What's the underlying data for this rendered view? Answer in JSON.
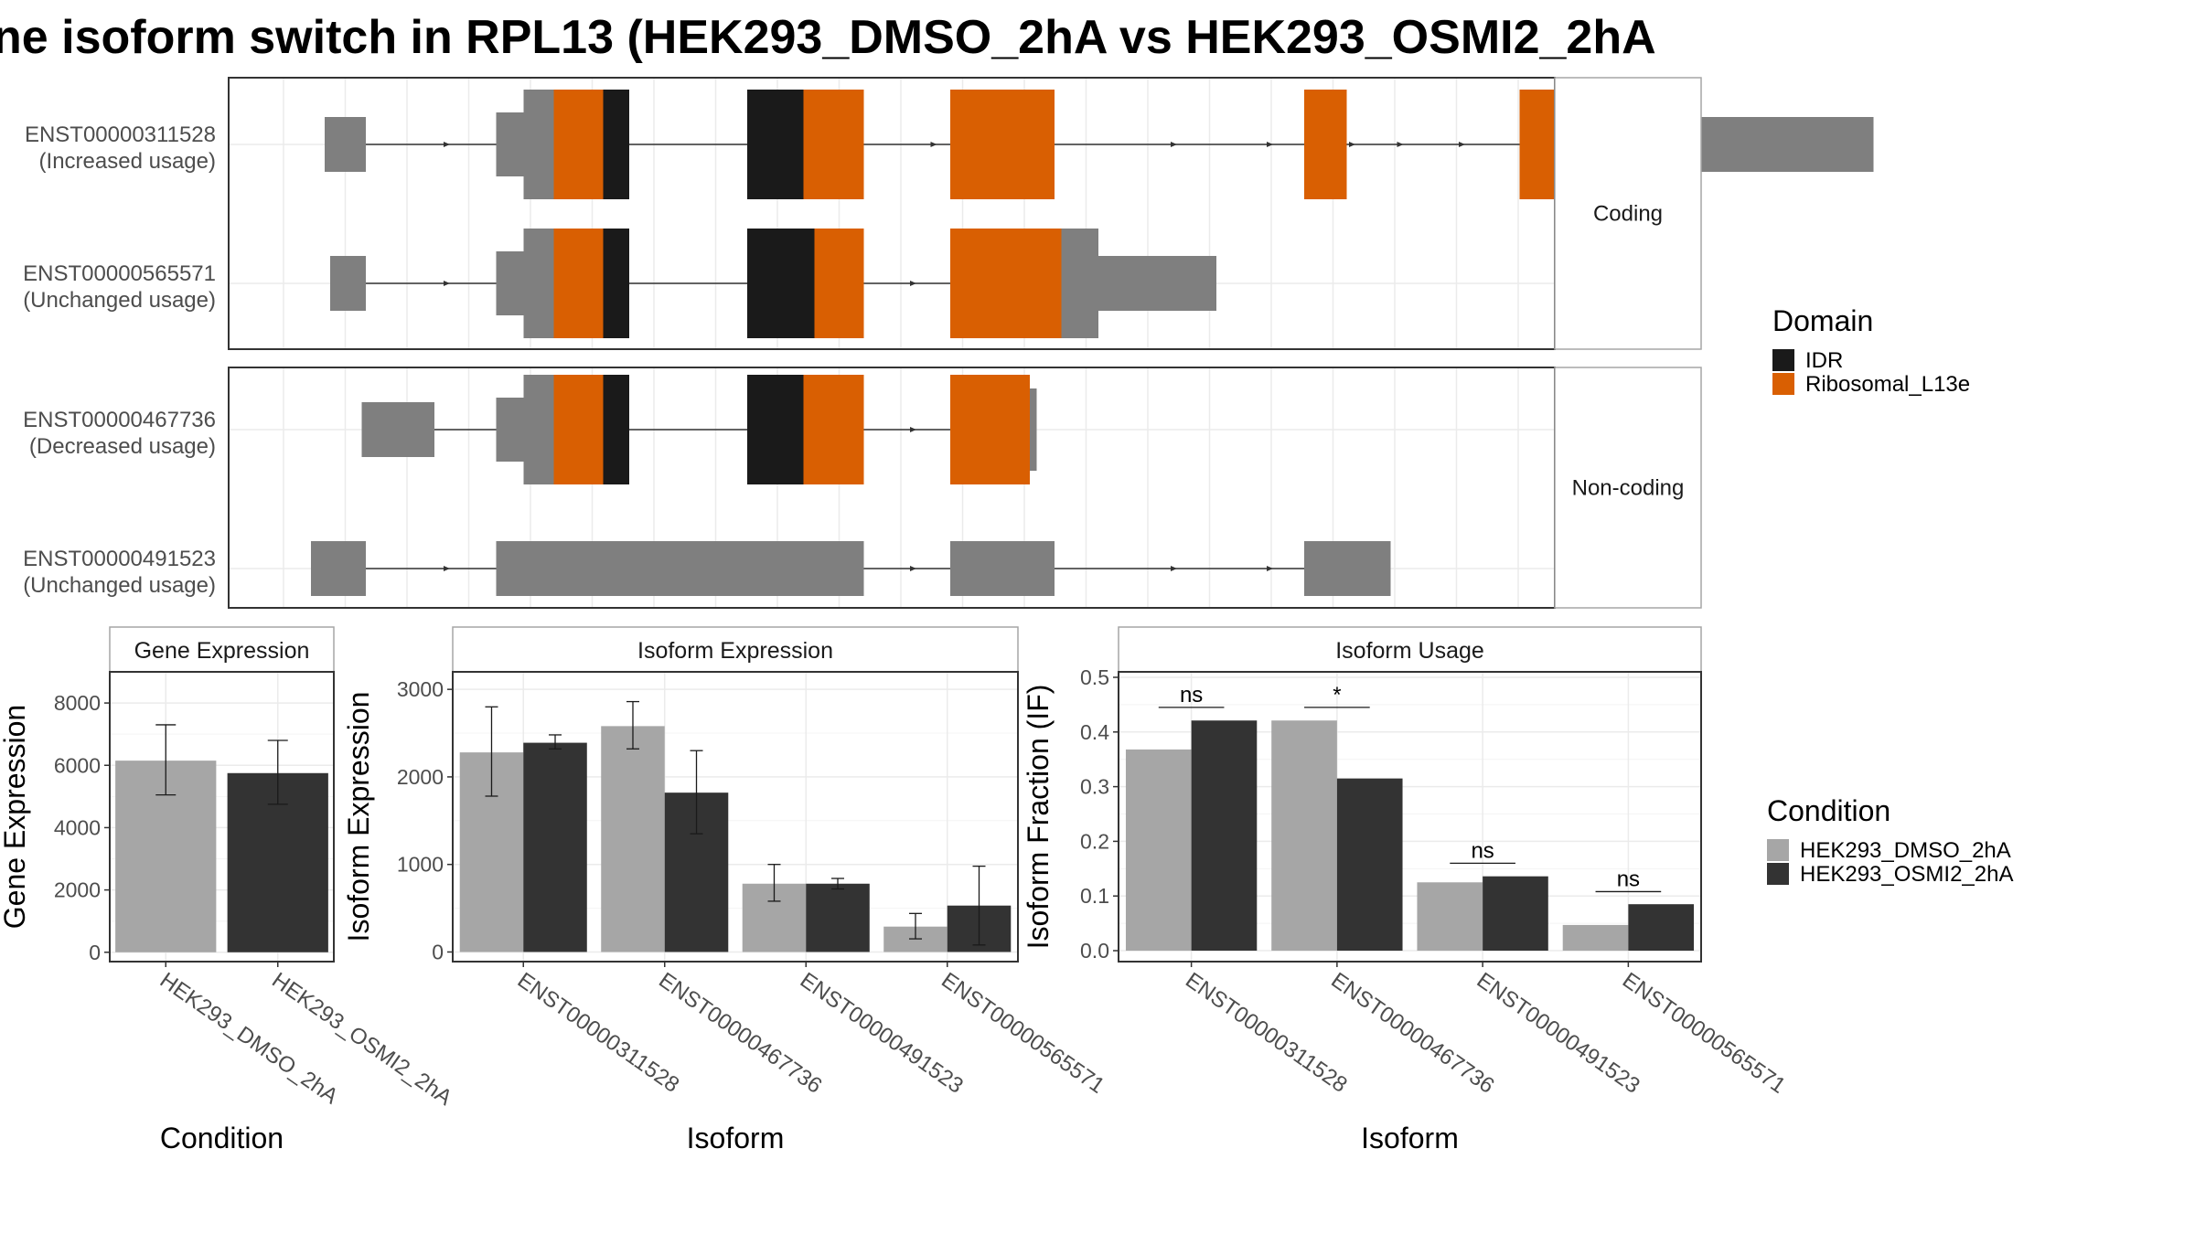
{
  "title": "ne isoform switch in RPL13 (HEK293_DMSO_2hA vs HEK293_OSMI2_2hA",
  "colors": {
    "idr": "#1a1a1a",
    "ribosomal": "#d95f02",
    "utr": "#7f7f7f",
    "dmso": "#a6a6a6",
    "osmi": "#333333",
    "grid": "#ebebeb",
    "panel_border": "#333333",
    "strip_fill": "#ffffff",
    "strip_border": "#a6a6a6"
  },
  "structure": {
    "sections": [
      {
        "label": "Coding",
        "transcripts": [
          {
            "id": "ENST00000311528",
            "status": "(Increased usage)",
            "segments": [
              [
                70,
                100,
                "utr"
              ],
              [
                195,
                215,
                "utr"
              ],
              [
                215,
                237,
                "utr"
              ],
              [
                237,
                273,
                "ribosomal"
              ],
              [
                273,
                292,
                "idr"
              ],
              [
                378,
                419,
                "idr"
              ],
              [
                419,
                463,
                "ribosomal"
              ],
              [
                526,
                602,
                "ribosomal"
              ],
              [
                784,
                815,
                "ribosomal"
              ],
              [
                941,
                981,
                "ribosomal"
              ],
              [
                981,
                1021,
                "utr"
              ],
              [
                1021,
                1199,
                "utr"
              ]
            ],
            "arrow_positions": [
              160,
              515,
              575,
              690,
              760,
              820,
              855,
              900
            ]
          },
          {
            "id": "ENST00000565571",
            "status": "(Unchanged usage)",
            "segments": [
              [
                74,
                100,
                "utr"
              ],
              [
                195,
                215,
                "utr"
              ],
              [
                215,
                237,
                "utr"
              ],
              [
                237,
                273,
                "ribosomal"
              ],
              [
                273,
                292,
                "idr"
              ],
              [
                378,
                427,
                "idr"
              ],
              [
                427,
                463,
                "ribosomal"
              ],
              [
                526,
                607,
                "ribosomal"
              ],
              [
                607,
                634,
                "utr"
              ],
              [
                634,
                720,
                "utr"
              ]
            ],
            "arrow_positions": [
              160,
              500
            ]
          }
        ]
      },
      {
        "label": "Non-coding",
        "transcripts": [
          {
            "id": "ENST00000467736",
            "status": "(Decreased usage)",
            "segments": [
              [
                97,
                150,
                "utr"
              ],
              [
                195,
                215,
                "utr"
              ],
              [
                215,
                237,
                "utr"
              ],
              [
                237,
                273,
                "ribosomal"
              ],
              [
                273,
                292,
                "idr"
              ],
              [
                378,
                419,
                "idr"
              ],
              [
                419,
                463,
                "ribosomal"
              ],
              [
                526,
                584,
                "ribosomal"
              ],
              [
                584,
                589,
                "utr"
              ]
            ],
            "arrow_positions": [
              500
            ]
          },
          {
            "id": "ENST00000491523",
            "status": "(Unchanged usage)",
            "segments": [
              [
                60,
                100,
                "utr"
              ],
              [
                195,
                463,
                "utr"
              ],
              [
                526,
                602,
                "utr"
              ],
              [
                784,
                847,
                "utr"
              ]
            ],
            "arrow_positions": [
              160,
              500,
              690,
              760
            ]
          }
        ]
      }
    ],
    "domain_legend": {
      "title": "Domain",
      "items": [
        {
          "label": "IDR",
          "color_key": "idr"
        },
        {
          "label": "Ribosomal_L13e",
          "color_key": "ribosomal"
        }
      ]
    }
  },
  "chart_data": [
    {
      "type": "bar",
      "title": "Gene Expression",
      "xlabel": "Condition",
      "ylabel": "Gene Expression",
      "categories": [
        "HEK293_DMSO_2hA",
        "HEK293_OSMI2_2hA"
      ],
      "values": [
        6150,
        5750
      ],
      "errors": [
        [
          5050,
          7300
        ],
        [
          4750,
          6800
        ]
      ],
      "ylim": [
        -300,
        9000
      ],
      "yticks": [
        0,
        2000,
        4000,
        6000,
        8000
      ],
      "ytick_labels": [
        "0",
        "2000",
        "4000",
        "6000",
        "8000"
      ]
    },
    {
      "type": "bar",
      "title": "Isoform Expression",
      "xlabel": "Isoform",
      "ylabel": "Isoform Expression",
      "categories": [
        "ENST00000311528",
        "ENST00000467736",
        "ENST00000491523",
        "ENST00000565571"
      ],
      "series": [
        {
          "name": "HEK293_DMSO_2hA",
          "values": [
            2280,
            2580,
            780,
            290
          ],
          "errors": [
            [
              1780,
              2800
            ],
            [
              2320,
              2860
            ],
            [
              580,
              1000
            ],
            [
              150,
              440
            ]
          ]
        },
        {
          "name": "HEK293_OSMI2_2hA",
          "values": [
            2390,
            1820,
            780,
            530
          ],
          "errors": [
            [
              2320,
              2480
            ],
            [
              1350,
              2300
            ],
            [
              720,
              840
            ],
            [
              80,
              980
            ]
          ]
        }
      ],
      "ylim": [
        -110,
        3200
      ],
      "yticks": [
        0,
        1000,
        2000,
        3000
      ],
      "ytick_labels": [
        "0",
        "1000",
        "2000",
        "3000"
      ]
    },
    {
      "type": "bar",
      "title": "Isoform Usage",
      "xlabel": "Isoform",
      "ylabel": "Isoform Fraction (IF)",
      "categories": [
        "ENST00000311528",
        "ENST00000467736",
        "ENST00000491523",
        "ENST00000565571"
      ],
      "series": [
        {
          "name": "HEK293_DMSO_2hA",
          "values": [
            0.368,
            0.421,
            0.125,
            0.047
          ]
        },
        {
          "name": "HEK293_OSMI2_2hA",
          "values": [
            0.421,
            0.315,
            0.136,
            0.085
          ]
        }
      ],
      "significance": [
        {
          "label": "ns",
          "y": 0.445
        },
        {
          "label": "*",
          "y": 0.445
        },
        {
          "label": "ns",
          "y": 0.16
        },
        {
          "label": "ns",
          "y": 0.108
        }
      ],
      "ylim": [
        -0.02,
        0.51
      ],
      "yticks": [
        0.0,
        0.1,
        0.2,
        0.3,
        0.4,
        0.5
      ],
      "ytick_labels": [
        "0.0",
        "0.1",
        "0.2",
        "0.3",
        "0.4",
        "0.5"
      ]
    }
  ],
  "condition_legend": {
    "title": "Condition",
    "items": [
      {
        "label": "HEK293_DMSO_2hA",
        "color_key": "dmso"
      },
      {
        "label": "HEK293_OSMI2_2hA",
        "color_key": "osmi"
      }
    ]
  }
}
